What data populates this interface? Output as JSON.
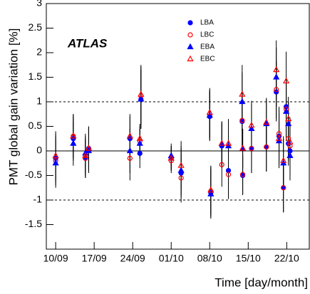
{
  "chart_data": {
    "type": "scatter",
    "annotation": "ATLAS",
    "x_label": "Time [day/month]",
    "y_label": "PMT global gain variation [%]",
    "xlim": [
      8.3,
      56.1
    ],
    "xticks": [
      {
        "value": 10,
        "label": "10/09"
      },
      {
        "value": 17,
        "label": "17/09"
      },
      {
        "value": 24,
        "label": "24/09"
      },
      {
        "value": 31,
        "label": "01/10"
      },
      {
        "value": 38,
        "label": "08/10"
      },
      {
        "value": 45,
        "label": "15/10"
      },
      {
        "value": 52,
        "label": "22/10"
      }
    ],
    "ylim": [
      -2,
      3
    ],
    "yticks": [
      -1.5,
      -1,
      -0.5,
      0,
      0.5,
      1,
      1.5,
      2,
      2.5,
      3
    ],
    "hlines": [
      {
        "value": -1,
        "style": "dotted"
      },
      {
        "value": 0,
        "style": "solid"
      },
      {
        "value": 1,
        "style": "dotted"
      }
    ],
    "legend": "top-right",
    "x": [
      10,
      13.2,
      15.4,
      16,
      23.5,
      25.3,
      25.5,
      31,
      32.8,
      38,
      38.2,
      40.2,
      41.4,
      43.9,
      44,
      45.6,
      48.3,
      50.1,
      50.6,
      51.4,
      51.9,
      52.3,
      52.6
    ],
    "series": [
      {
        "name": "LBA",
        "color": "#0000ff",
        "marker": "circle",
        "filled": true,
        "values": [
          -0.15,
          0.25,
          -0.15,
          0.05,
          0.25,
          -0.05,
          1.05,
          -0.15,
          -0.45,
          0.7,
          -0.85,
          0.1,
          -0.4,
          0.6,
          -0.5,
          0.05,
          0.08,
          1.2,
          0.3,
          -0.75,
          0.9,
          0.15,
          0.0
        ],
        "errors": [
          0.5,
          0.45,
          0.4,
          0.45,
          0.45,
          0.3,
          0.6,
          0.25,
          0.5,
          0.5,
          0.5,
          0.45,
          0.5,
          0.6,
          0.4,
          0.5,
          0.5,
          0.6,
          0.55,
          0.5,
          0.6,
          0.45,
          0.5
        ]
      },
      {
        "name": "LBC",
        "color": "#ff0000",
        "marker": "circle",
        "filled": false,
        "values": [
          -0.2,
          0.3,
          -0.15,
          0.03,
          -0.15,
          0.2,
          1.12,
          -0.2,
          -0.55,
          0.75,
          -0.82,
          -0.28,
          -0.48,
          0.62,
          -0.48,
          0.05,
          0.08,
          1.25,
          0.35,
          -0.75,
          0.85,
          0.25,
          0.1
        ],
        "errors": [
          0.5,
          0.45,
          0.4,
          0.45,
          0.45,
          0.3,
          0.6,
          0.25,
          0.5,
          0.5,
          0.5,
          0.45,
          0.5,
          0.6,
          0.4,
          0.5,
          0.5,
          0.6,
          0.55,
          0.5,
          0.6,
          0.45,
          0.5
        ]
      },
      {
        "name": "EBA",
        "color": "#0000ff",
        "marker": "triangle",
        "filled": true,
        "values": [
          -0.25,
          0.15,
          -0.05,
          0.0,
          0.0,
          0.15,
          1.05,
          -0.1,
          -0.4,
          0.72,
          -0.88,
          0.15,
          0.1,
          1.0,
          0.05,
          0.45,
          0.55,
          1.5,
          0.2,
          -0.25,
          0.8,
          0.55,
          -0.1
        ],
        "errors": [
          0.5,
          0.45,
          0.4,
          0.45,
          0.45,
          0.3,
          0.6,
          0.25,
          0.5,
          0.5,
          0.5,
          0.45,
          0.5,
          0.6,
          0.4,
          0.5,
          0.5,
          0.6,
          0.55,
          0.5,
          0.6,
          0.45,
          0.5
        ]
      },
      {
        "name": "EBC",
        "color": "#ff0000",
        "marker": "triangle",
        "filled": false,
        "values": [
          -0.1,
          0.3,
          -0.1,
          0.05,
          0.3,
          0.25,
          1.15,
          -0.15,
          -0.3,
          0.78,
          -0.8,
          0.15,
          0.15,
          1.15,
          0.05,
          0.52,
          0.58,
          1.65,
          0.25,
          -0.2,
          1.42,
          0.65,
          0.18
        ],
        "errors": [
          0.5,
          0.45,
          0.4,
          0.45,
          0.45,
          0.3,
          0.6,
          0.25,
          0.5,
          0.5,
          0.5,
          0.45,
          0.5,
          0.6,
          0.4,
          0.5,
          0.5,
          0.6,
          0.55,
          0.5,
          0.6,
          0.45,
          0.5
        ]
      }
    ]
  }
}
